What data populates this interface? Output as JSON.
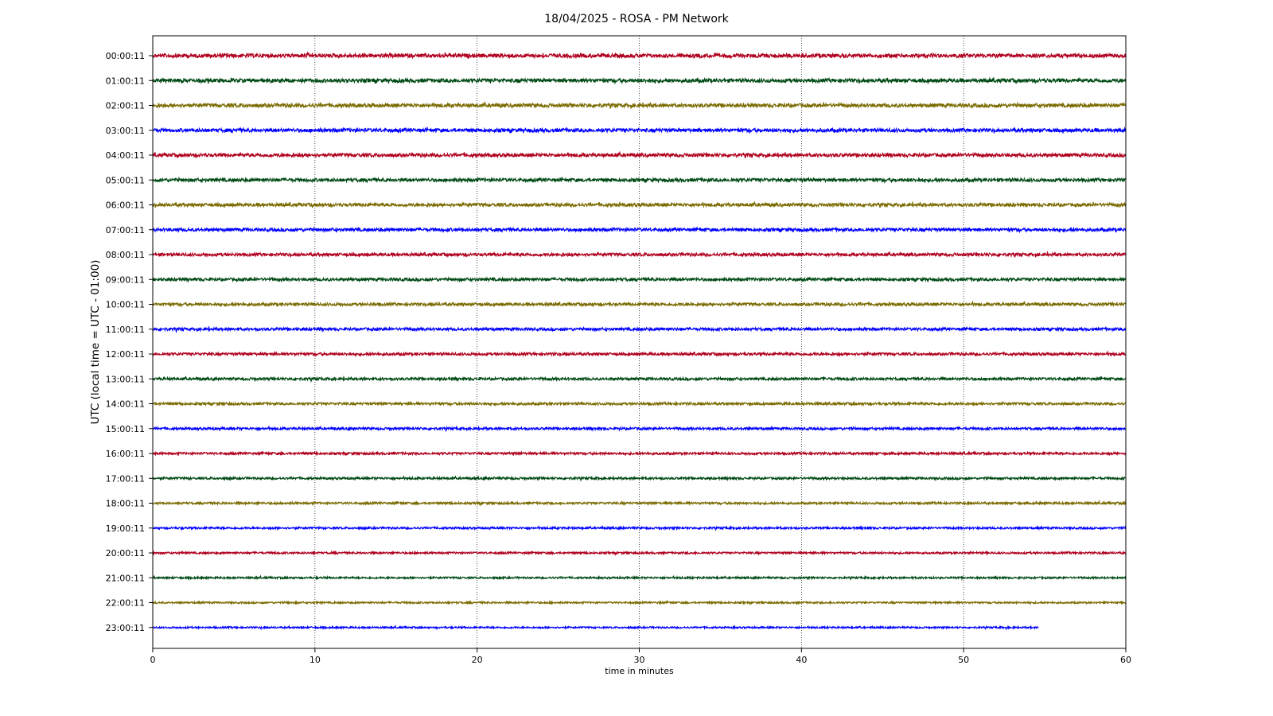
{
  "chart_data": {
    "type": "line",
    "title": "18/04/2025 - ROSA - PM Network",
    "xlabel": "time in minutes",
    "ylabel": "UTC (local time = UTC - 01:00)",
    "xlim": [
      0,
      60
    ],
    "x_ticks": [
      0,
      10,
      20,
      30,
      40,
      50,
      60
    ],
    "grid": "vertical dotted",
    "colors": [
      "#b0001e",
      "#004a14",
      "#7a6a00",
      "#0000ff"
    ],
    "series": [
      {
        "name": "00:00:11",
        "x_end": 60
      },
      {
        "name": "01:00:11",
        "x_end": 60
      },
      {
        "name": "02:00:11",
        "x_end": 60
      },
      {
        "name": "03:00:11",
        "x_end": 60
      },
      {
        "name": "04:00:11",
        "x_end": 60
      },
      {
        "name": "05:00:11",
        "x_end": 60
      },
      {
        "name": "06:00:11",
        "x_end": 60
      },
      {
        "name": "07:00:11",
        "x_end": 60
      },
      {
        "name": "08:00:11",
        "x_end": 60
      },
      {
        "name": "09:00:11",
        "x_end": 60
      },
      {
        "name": "10:00:11",
        "x_end": 60
      },
      {
        "name": "11:00:11",
        "x_end": 60
      },
      {
        "name": "12:00:11",
        "x_end": 60
      },
      {
        "name": "13:00:11",
        "x_end": 60
      },
      {
        "name": "14:00:11",
        "x_end": 60
      },
      {
        "name": "15:00:11",
        "x_end": 60
      },
      {
        "name": "16:00:11",
        "x_end": 60
      },
      {
        "name": "17:00:11",
        "x_end": 60
      },
      {
        "name": "18:00:11",
        "x_end": 60
      },
      {
        "name": "19:00:11",
        "x_end": 60
      },
      {
        "name": "20:00:11",
        "x_end": 60
      },
      {
        "name": "21:00:11",
        "x_end": 60
      },
      {
        "name": "22:00:11",
        "x_end": 60
      },
      {
        "name": "23:00:11",
        "x_end": 54.6
      }
    ]
  }
}
